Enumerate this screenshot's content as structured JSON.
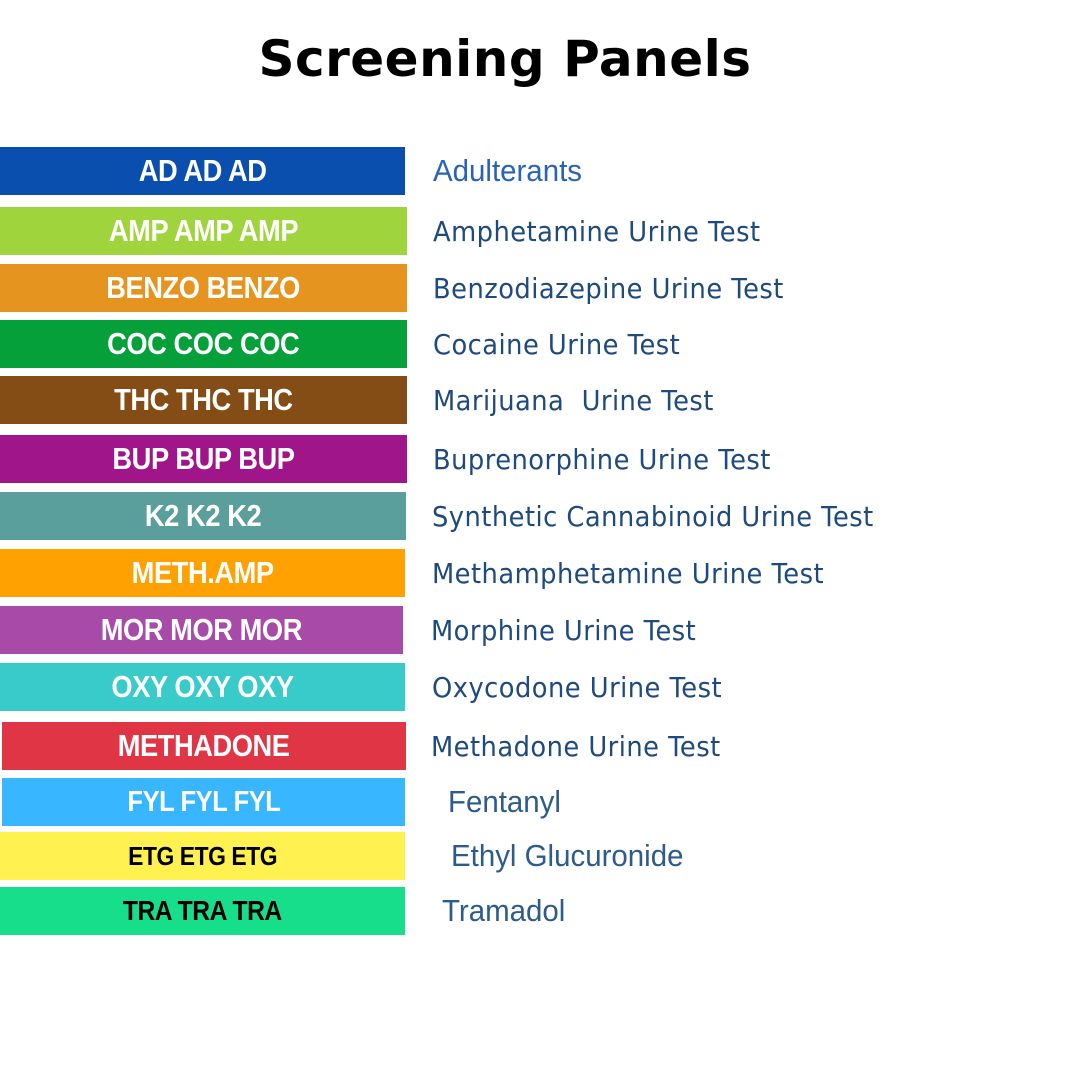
{
  "title": "Screening Panels",
  "panels": [
    {
      "code": "AD AD AD",
      "name": "Adulterants",
      "band_color": "#0a4fae",
      "text_color": "#ffffff"
    },
    {
      "code": "AMP AMP AMP",
      "name": "Amphetamine Urine Test",
      "band_color": "#9fd43c",
      "text_color": "#ffffff"
    },
    {
      "code": "BENZO BENZO",
      "name": "Benzodiazepine Urine Test",
      "band_color": "#e59420",
      "text_color": "#ffffff"
    },
    {
      "code": "COC COC COC",
      "name": "Cocaine Urine Test",
      "band_color": "#05a03a",
      "text_color": "#ffffff"
    },
    {
      "code": "THC THC THC",
      "name": "Marijuana  Urine Test",
      "band_color": "#834d15",
      "text_color": "#ffffff"
    },
    {
      "code": "BUP BUP BUP",
      "name": "Buprenorphine Urine Test",
      "band_color": "#a0158a",
      "text_color": "#ffffff"
    },
    {
      "code": "K2 K2 K2",
      "name": "Synthetic Cannabinoid Urine Test",
      "band_color": "#5a9f9c",
      "text_color": "#ffffff"
    },
    {
      "code": "METH.AMP",
      "name": "Methamphetamine Urine Test",
      "band_color": "#ffa100",
      "text_color": "#ffffff"
    },
    {
      "code": "MOR MOR MOR",
      "name": "Morphine Urine Test",
      "band_color": "#a84aa8",
      "text_color": "#ffffff"
    },
    {
      "code": "OXY OXY OXY",
      "name": "Oxycodone Urine Test",
      "band_color": "#38cbc9",
      "text_color": "#ffffff"
    },
    {
      "code": "METHADONE",
      "name": "Methadone Urine Test",
      "band_color": "#e03545",
      "text_color": "#ffffff"
    },
    {
      "code": "FYL FYL FYL",
      "name": "Fentanyl",
      "band_color": "#38b6ff",
      "text_color": "#ffffff"
    },
    {
      "code": "ETG ETG ETG",
      "name": "Ethyl Glucuronide",
      "band_color": "#fff250",
      "text_color": "#000000"
    },
    {
      "code": "TRA TRA TRA",
      "name": "Tramadol",
      "band_color": "#17de8a",
      "text_color": "#000000"
    }
  ]
}
